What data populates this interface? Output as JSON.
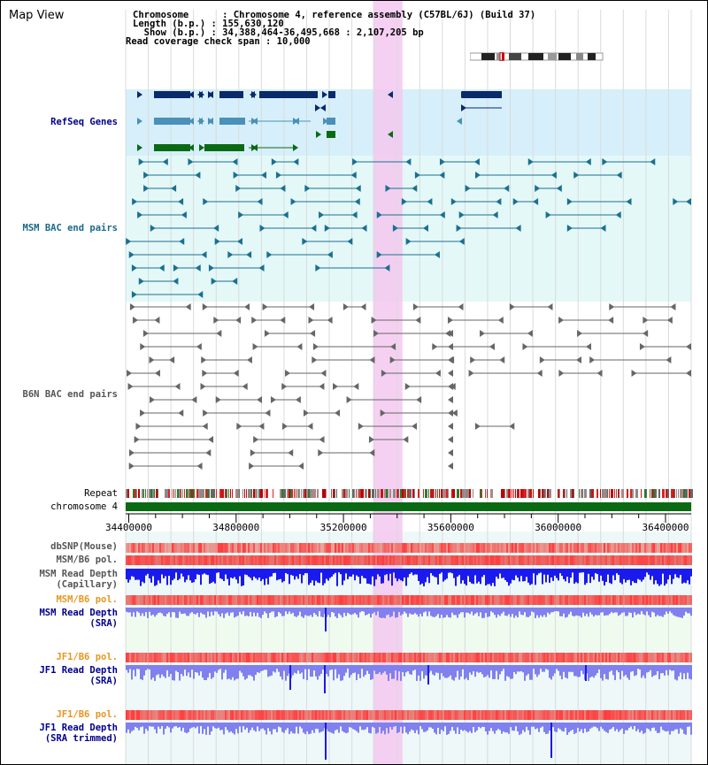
{
  "view_title": "Map View",
  "info": {
    "chromosome_line": "Chromosome      : Chromosome 4, reference assembly (C57BL/6J) (Build 37)",
    "length_line": "Length (b.p.) : 155,630,120",
    "show_line": "  Show (b.p.) : 34,388,464-36,495,668 : 2,107,205 bp",
    "coverage_line": "Read coverage check span : 10,000"
  },
  "track_labels": {
    "refseq": "RefSeq Genes",
    "msm_bac": "MSM BAC end pairs",
    "b6n_bac": "B6N BAC end pairs",
    "repeat": "Repeat",
    "chromosome": "chromosome 4",
    "dbsnp": "dbSNP(Mouse)",
    "msm_b6_pol_1": "MSM/B6 pol.",
    "msm_read_depth_cap_1": "MSM Read Depth",
    "msm_read_depth_cap_2": "(Capillary)",
    "msm_b6_pol_2": "MSM/B6 pol.",
    "msm_read_depth_sra_1": "MSM Read Depth",
    "msm_read_depth_sra_2": "(SRA)",
    "jf1_b6_pol_1": "JF1/B6 pol.",
    "jf1_read_depth_1": "JF1 Read Depth",
    "jf1_read_depth_2": "(SRA)",
    "jf1_b6_pol_2": "JF1/B6 pol.",
    "jf1_read_depth_trim_1": "JF1 Read Depth",
    "jf1_read_depth_trim_2": "(SRA trimmed)"
  },
  "axis": {
    "ticks": [
      "34400000",
      "34800000",
      "35200000",
      "35600000",
      "36000000",
      "36400000"
    ],
    "tick_values": [
      34400000,
      34800000,
      35200000,
      35600000,
      36000000,
      36400000
    ],
    "view_start": 34388464,
    "view_end": 36495668
  },
  "highlight_region": {
    "start": 35310000,
    "end": 35420000
  },
  "colors": {
    "refseq_dark": "#0a2a6a",
    "refseq_light": "#4a90b8",
    "refseq_green": "#0a6a14",
    "msm_bac": "#1a7090",
    "b6n_bac": "#666666",
    "depth_blue": "#1a1aee",
    "depth_light": "#8080ee",
    "highlight": "#f4c8f0",
    "refseq_bg": "#d6effa",
    "msm_bg": "#e4f8f8",
    "lower_bg": "#eef8f8",
    "label_navy": "#00008b",
    "label_teal": "#1a6a8a",
    "label_orange": "#e8961e",
    "label_gray": "#555555"
  }
}
